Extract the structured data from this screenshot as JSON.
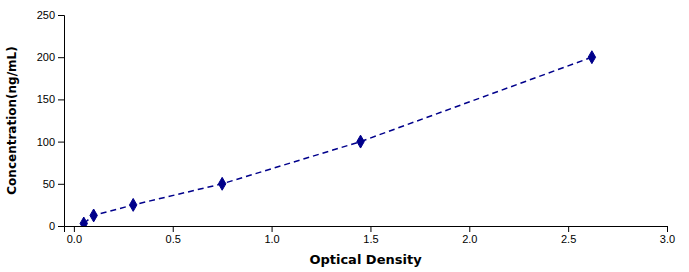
{
  "chart_data": {
    "type": "line",
    "x": [
      0.05,
      0.1,
      0.3,
      0.75,
      1.45,
      2.62
    ],
    "values": [
      3.0,
      12.5,
      25.0,
      50.0,
      100.0,
      200.0
    ],
    "color": "#00008B",
    "marker": "diamond",
    "line_style": "dashed",
    "xlabel": "Optical Density",
    "ylabel": "Concentration(ng/mL)",
    "xlim": [
      -0.05,
      3.0
    ],
    "ylim": [
      0,
      250
    ],
    "xticks": [
      {
        "value": 0,
        "label": "0.0"
      },
      0.5,
      {
        "value": 1,
        "label": "1.0"
      },
      1.5,
      {
        "value": 2,
        "label": "2.0"
      },
      2.5,
      {
        "value": 3,
        "label": "3.0"
      }
    ],
    "yticks": [
      0,
      50,
      100,
      150,
      200,
      250
    ]
  }
}
